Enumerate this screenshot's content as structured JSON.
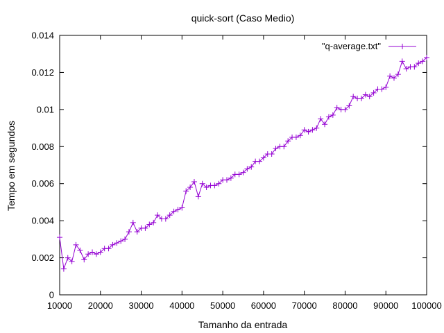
{
  "chart_data": {
    "type": "line",
    "title": "quick-sort (Caso Medio)",
    "xlabel": "Tamanho da entrada",
    "ylabel": "Tempo em segundos",
    "xlim": [
      10000,
      100000
    ],
    "ylim": [
      0,
      0.014
    ],
    "x_ticks": [
      10000,
      20000,
      30000,
      40000,
      50000,
      60000,
      70000,
      80000,
      90000,
      100000
    ],
    "y_ticks": [
      0,
      0.002,
      0.004,
      0.006,
      0.008,
      0.01,
      0.012,
      0.014
    ],
    "x_tick_labels": [
      "10000",
      "20000",
      "30000",
      "40000",
      "50000",
      "60000",
      "70000",
      "80000",
      "90000",
      "100000"
    ],
    "y_tick_labels": [
      "0",
      "0.002",
      "0.004",
      "0.006",
      "0.008",
      "0.01",
      "0.012",
      "0.014"
    ],
    "grid": false,
    "legend_position": "top-right",
    "series_color": "#9400d3",
    "series": [
      {
        "name": "\"q-average.txt\"",
        "marker": "plus",
        "x": [
          10000,
          11000,
          12000,
          13000,
          14000,
          15000,
          16000,
          17000,
          18000,
          19000,
          20000,
          21000,
          22000,
          23000,
          24000,
          25000,
          26000,
          27000,
          28000,
          29000,
          30000,
          31000,
          32000,
          33000,
          34000,
          35000,
          36000,
          37000,
          38000,
          39000,
          40000,
          41000,
          42000,
          43000,
          44000,
          45000,
          46000,
          47000,
          48000,
          49000,
          50000,
          51000,
          52000,
          53000,
          54000,
          55000,
          56000,
          57000,
          58000,
          59000,
          60000,
          61000,
          62000,
          63000,
          64000,
          65000,
          66000,
          67000,
          68000,
          69000,
          70000,
          71000,
          72000,
          73000,
          74000,
          75000,
          76000,
          77000,
          78000,
          79000,
          80000,
          81000,
          82000,
          83000,
          84000,
          85000,
          86000,
          87000,
          88000,
          89000,
          90000,
          91000,
          92000,
          93000,
          94000,
          95000,
          96000,
          97000,
          98000,
          99000,
          100000
        ],
        "y": [
          0.0031,
          0.0014,
          0.002,
          0.0018,
          0.0027,
          0.0024,
          0.0019,
          0.0022,
          0.0023,
          0.0022,
          0.0023,
          0.0025,
          0.0025,
          0.0027,
          0.0028,
          0.0029,
          0.003,
          0.0034,
          0.0039,
          0.0034,
          0.0036,
          0.0036,
          0.0038,
          0.0039,
          0.0043,
          0.0041,
          0.0041,
          0.0043,
          0.0045,
          0.0046,
          0.0047,
          0.0056,
          0.0058,
          0.0061,
          0.0053,
          0.006,
          0.0058,
          0.0059,
          0.0059,
          0.006,
          0.0062,
          0.0062,
          0.0063,
          0.0065,
          0.0065,
          0.0066,
          0.0068,
          0.0069,
          0.0072,
          0.0072,
          0.0074,
          0.0076,
          0.0076,
          0.0079,
          0.008,
          0.008,
          0.0083,
          0.0085,
          0.0085,
          0.0086,
          0.0089,
          0.0088,
          0.0089,
          0.009,
          0.0095,
          0.0092,
          0.0096,
          0.0097,
          0.0101,
          0.01,
          0.01,
          0.0102,
          0.0107,
          0.0106,
          0.0106,
          0.0108,
          0.0107,
          0.0109,
          0.0111,
          0.0111,
          0.0112,
          0.0118,
          0.0117,
          0.0119,
          0.0126,
          0.0122,
          0.0123,
          0.0123,
          0.0125,
          0.0126,
          0.0128
        ]
      }
    ]
  }
}
